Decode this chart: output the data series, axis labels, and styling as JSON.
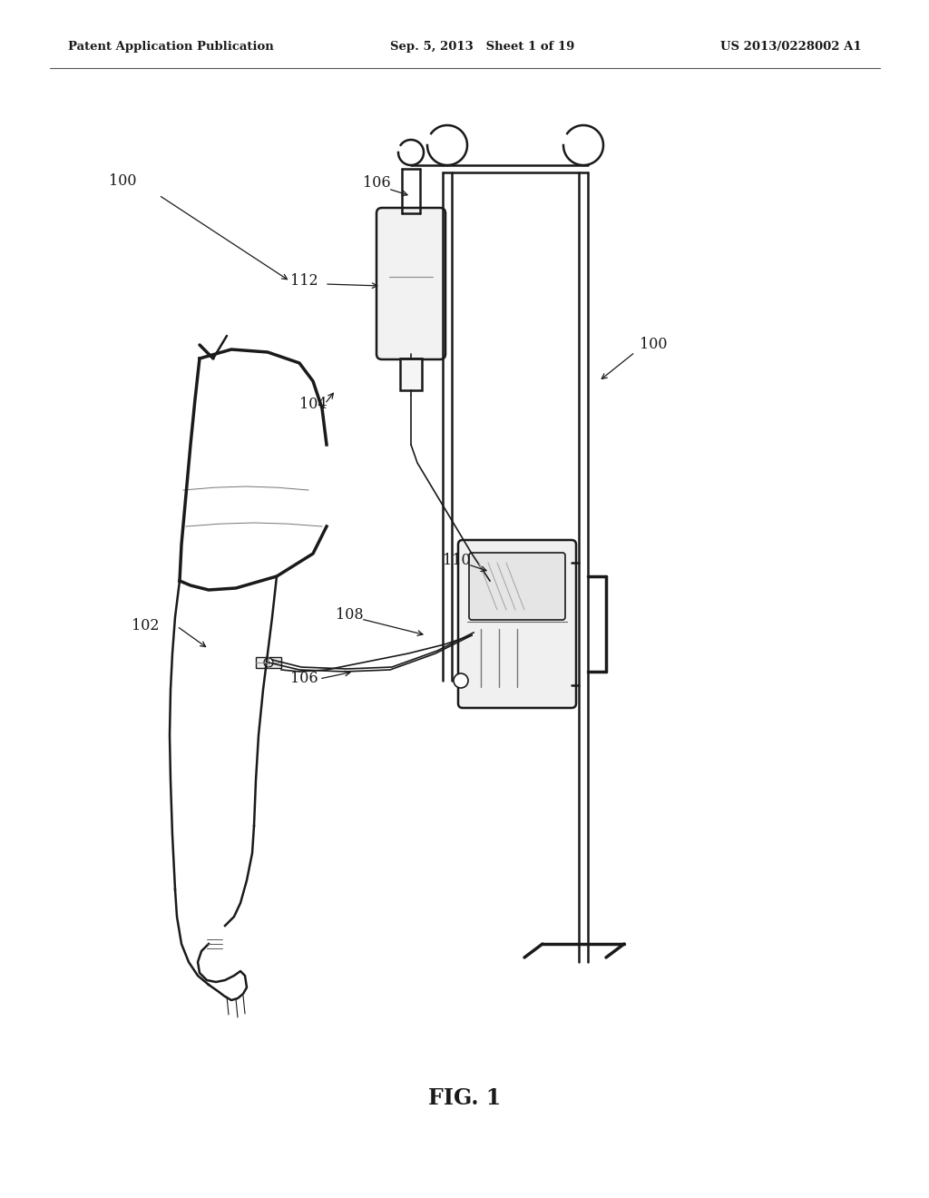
{
  "bg_color": "#ffffff",
  "line_color": "#1a1a1a",
  "header_left": "Patent Application Publication",
  "header_mid": "Sep. 5, 2013   Sheet 1 of 19",
  "header_right": "US 2013/0228002 A1",
  "fig_label": "FIG. 1"
}
